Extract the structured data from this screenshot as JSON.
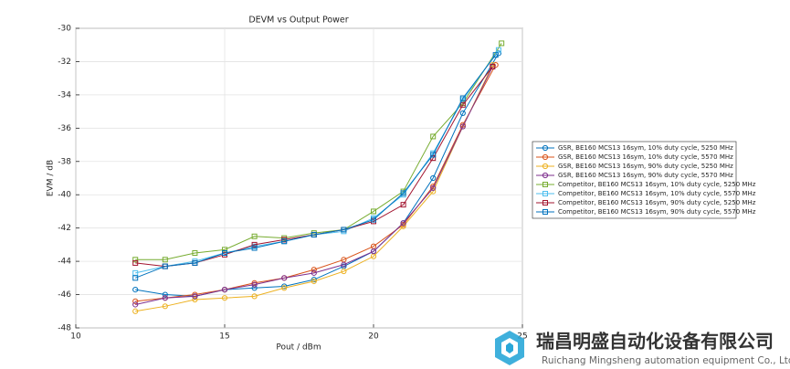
{
  "chart_data": {
    "type": "line",
    "title": "DEVM vs Output Power",
    "x_label": "Pout / dBm",
    "y_label": "EVM / dB",
    "xlim": [
      10,
      25
    ],
    "xticks": [
      10,
      15,
      20,
      25
    ],
    "ylim": [
      -48,
      -30
    ],
    "yticks": [
      -48,
      -46,
      -44,
      -42,
      -40,
      -38,
      -36,
      -34,
      -32,
      -30
    ],
    "grid": true,
    "legend": "right",
    "series": [
      {
        "name": "GSR, BE160 MCS13 16sym, 10% duty cycle, 5250 MHz",
        "color": "#0072BD",
        "marker": "circle",
        "x": [
          12,
          13,
          14,
          15,
          16,
          17,
          18,
          19,
          20,
          21,
          22,
          23,
          24.2
        ],
        "values": [
          -45.7,
          -46,
          -46.1,
          -45.7,
          -45.6,
          -45.5,
          -45.1,
          -44.3,
          -43.4,
          -41.7,
          -39,
          -35.1,
          -31.5
        ]
      },
      {
        "name": "GSR, BE160 MCS13 16sym, 10% duty cycle, 5570 MHz",
        "color": "#D95319",
        "marker": "circle",
        "x": [
          12,
          13,
          14,
          15,
          16,
          17,
          18,
          19,
          20,
          21,
          22,
          23,
          24.1
        ],
        "values": [
          -46.4,
          -46.2,
          -46,
          -45.7,
          -45.3,
          -45,
          -44.5,
          -43.9,
          -43.1,
          -41.8,
          -39.5,
          -35.8,
          -32.2
        ]
      },
      {
        "name": "GSR, BE160 MCS13 16sym, 90% duty cycle, 5250 MHz",
        "color": "#EDB120",
        "marker": "circle",
        "x": [
          12,
          13,
          14,
          15,
          16,
          17,
          18,
          19,
          20,
          21,
          22,
          23,
          24
        ],
        "values": [
          -47,
          -46.7,
          -46.3,
          -46.2,
          -46.1,
          -45.6,
          -45.2,
          -44.6,
          -43.7,
          -41.9,
          -39.8,
          -35.9,
          -32.2
        ]
      },
      {
        "name": "GSR, BE160 MCS13 16sym, 90% duty cycle, 5570 MHz",
        "color": "#7E2F8E",
        "marker": "circle",
        "x": [
          12,
          13,
          14,
          15,
          16,
          17,
          18,
          19,
          20,
          21,
          22,
          23,
          24
        ],
        "values": [
          -46.6,
          -46.2,
          -46.1,
          -45.7,
          -45.4,
          -45,
          -44.7,
          -44.2,
          -43.4,
          -41.7,
          -39.6,
          -35.9,
          -32.3
        ]
      },
      {
        "name": "Competitor, BE160 MCS13 16sym, 10% duty cycle, 5250 MHz",
        "color": "#77AC30",
        "marker": "square",
        "x": [
          12,
          13,
          14,
          15,
          16,
          17,
          18,
          19,
          20,
          21,
          22,
          23,
          24.3
        ],
        "values": [
          -43.9,
          -43.9,
          -43.5,
          -43.3,
          -42.5,
          -42.6,
          -42.3,
          -42.1,
          -41,
          -39.8,
          -36.5,
          -34.5,
          -30.9
        ]
      },
      {
        "name": "Competitor, BE160 MCS13 16sym, 10% duty cycle, 5570 MHz",
        "color": "#4DBEEE",
        "marker": "square",
        "x": [
          12,
          13,
          14,
          15,
          16,
          17,
          18,
          19,
          20,
          21,
          22,
          23,
          24.2
        ],
        "values": [
          -44.7,
          -44.3,
          -44,
          -43.5,
          -43.1,
          -42.8,
          -42.4,
          -42.2,
          -41.4,
          -40,
          -37.5,
          -34.3,
          -31.3
        ]
      },
      {
        "name": "Competitor, BE160 MCS13 16sym, 90% duty cycle, 5250 MHz",
        "color": "#A2142F",
        "marker": "square",
        "x": [
          12,
          13,
          14,
          15,
          16,
          17,
          18,
          19,
          20,
          21,
          22,
          23,
          24
        ],
        "values": [
          -44.1,
          -44.3,
          -44.1,
          -43.6,
          -43,
          -42.7,
          -42.4,
          -42.1,
          -41.6,
          -40.6,
          -37.8,
          -34.6,
          -32.3
        ]
      },
      {
        "name": "Competitor, BE160 MCS13 16sym, 90% duty cycle, 5570 MHz",
        "color": "#0072BD",
        "marker": "square",
        "x": [
          12,
          13,
          14,
          15,
          16,
          17,
          18,
          19,
          20,
          21,
          22,
          23,
          24.1
        ],
        "values": [
          -45,
          -44.3,
          -44.1,
          -43.5,
          -43.2,
          -42.8,
          -42.4,
          -42.1,
          -41.5,
          -39.9,
          -37.6,
          -34.2,
          -31.6
        ]
      }
    ]
  },
  "watermark": {
    "company": "瑞昌明盛自动化设备有限公司",
    "company_en": "Ruichang Mingsheng automation equipment Co., Ltd"
  }
}
